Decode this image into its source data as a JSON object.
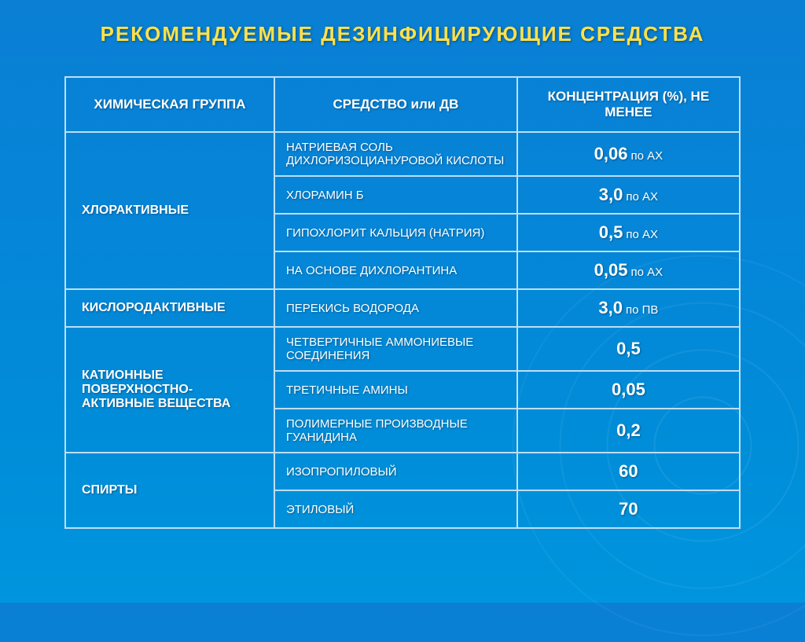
{
  "title": "РЕКОМЕНДУЕМЫЕ  ДЕЗИНФИЦИРУЮЩИЕ  СРЕДСТВА",
  "headers": {
    "group": "ХИМИЧЕСКАЯ  ГРУППА",
    "agent": "СРЕДСТВО  или  ДВ",
    "conc": "КОНЦЕНТРАЦИЯ (%), НЕ  МЕНЕЕ"
  },
  "groups": [
    {
      "name": "ХЛОРАКТИВНЫЕ",
      "rows": [
        {
          "agent": "НАТРИЕВАЯ  СОЛЬ ДИХЛОРИЗОЦИАНУРОВОЙ КИСЛОТЫ",
          "val": "0,06",
          "unit": "по АХ"
        },
        {
          "agent": "ХЛОРАМИН Б",
          "val": "3,0",
          "unit": "по АХ"
        },
        {
          "agent": "ГИПОХЛОРИТ  КАЛЬЦИЯ (НАТРИЯ)",
          "val": "0,5",
          "unit": "по АХ"
        },
        {
          "agent": "НА  ОСНОВЕ  ДИХЛОРАНТИНА",
          "val": "0,05",
          "unit": "по АХ"
        }
      ]
    },
    {
      "name": "КИСЛОРОДАКТИВНЫЕ",
      "rows": [
        {
          "agent": "ПЕРЕКИСЬ  ВОДОРОДА",
          "val": "3,0",
          "unit": "по ПВ"
        }
      ]
    },
    {
      "name": "КАТИОННЫЕ ПОВЕРХНОСТНО-АКТИВНЫЕ ВЕЩЕСТВА",
      "rows": [
        {
          "agent": "ЧЕТВЕРТИЧНЫЕ АММОНИЕВЫЕ  СОЕДИНЕНИЯ",
          "val": "0,5",
          "unit": ""
        },
        {
          "agent": "ТРЕТИЧНЫЕ  АМИНЫ",
          "val": "0,05",
          "unit": ""
        },
        {
          "agent": "ПОЛИМЕРНЫЕ ПРОИЗВОДНЫЕ ГУАНИДИНА",
          "val": "0,2",
          "unit": ""
        }
      ]
    },
    {
      "name": "СПИРТЫ",
      "rows": [
        {
          "agent": "ИЗОПРОПИЛОВЫЙ",
          "val": "60",
          "unit": ""
        },
        {
          "agent": "ЭТИЛОВЫЙ",
          "val": "70",
          "unit": ""
        }
      ]
    }
  ]
}
